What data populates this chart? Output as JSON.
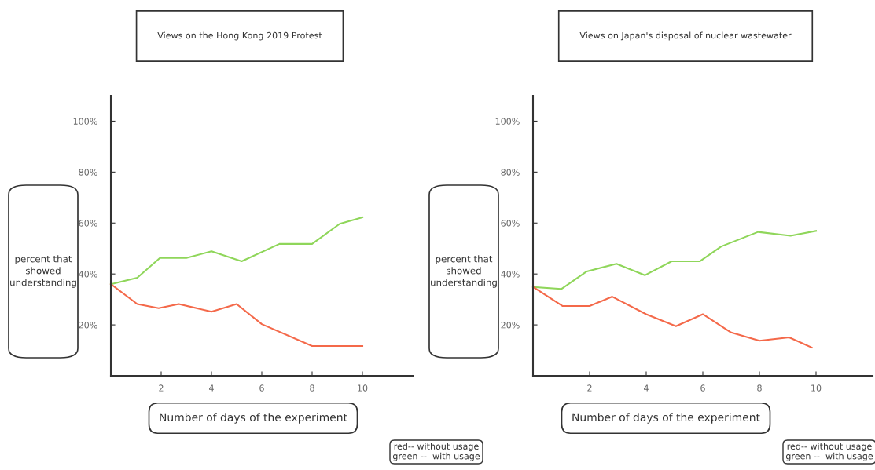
{
  "chart_data": [
    {
      "type": "line",
      "title": "Views on the Hong Kong 2019 Protest",
      "xlabel": "Number of days of the experiment",
      "ylabel": "percent that\nshowed\nunderstanding",
      "annotations": [
        "red-- without usage\ngreen --  with usage"
      ],
      "series": [
        {
          "color": "#8fd65a",
          "x": [
            0,
            1.05,
            1.95,
            3,
            4,
            5.2,
            6.7,
            8,
            9.1,
            10
          ],
          "values": [
            36,
            38.5,
            46.3,
            46.3,
            48.9,
            45,
            51.8,
            51.8,
            59.7,
            62.2
          ]
        },
        {
          "color": "#f4694a",
          "x": [
            0,
            1.05,
            1.9,
            2.7,
            4,
            5,
            6,
            8,
            10
          ],
          "values": [
            36,
            28.2,
            26.6,
            28.2,
            25.2,
            28.2,
            20.3,
            11.7,
            11.7
          ]
        }
      ],
      "xlim": [
        0,
        12
      ],
      "ylim": [
        0,
        110
      ],
      "xticks": [
        2,
        4,
        6,
        8,
        10
      ],
      "yticks": [
        {
          "value": 20,
          "label": "20%"
        },
        {
          "value": 40,
          "label": "40%"
        },
        {
          "value": 60,
          "label": "60%"
        },
        {
          "value": 80,
          "label": "80%"
        },
        {
          "value": 100,
          "label": "100%"
        }
      ],
      "grid": false,
      "legend": false,
      "marker": "none",
      "line_style": "solid"
    },
    {
      "type": "line",
      "title": "Views on Japan's disposal of nuclear wastewater",
      "xlabel": "Number of days of the experiment",
      "ylabel": "percent that\nshowed\nunderstanding",
      "annotations": [
        "red-- without usage\ngreen --  with usage"
      ],
      "series": [
        {
          "color": "#8fd65a",
          "x": [
            0,
            1,
            1.9,
            2.95,
            3.95,
            4.9,
            5.9,
            6.65,
            7.95,
            9.1,
            10
          ],
          "values": [
            34.9,
            34.1,
            41,
            44,
            39.5,
            45,
            45,
            50.8,
            56.5,
            55,
            56.9
          ]
        },
        {
          "color": "#f4694a",
          "x": [
            0,
            1.05,
            2,
            2.8,
            4,
            5.05,
            6,
            7,
            8,
            9.05,
            9.85
          ],
          "values": [
            34.9,
            27.4,
            27.4,
            31.1,
            24.2,
            19.5,
            24.2,
            17,
            13.8,
            15.1,
            11.1
          ]
        }
      ],
      "xlim": [
        0,
        12
      ],
      "ylim": [
        0,
        110
      ],
      "xticks": [
        2,
        4,
        6,
        8,
        10
      ],
      "yticks": [
        {
          "value": 20,
          "label": "20%"
        },
        {
          "value": 40,
          "label": "40%"
        },
        {
          "value": 60,
          "label": "60%"
        },
        {
          "value": 80,
          "label": "80%"
        },
        {
          "value": 100,
          "label": "100%"
        }
      ],
      "grid": false,
      "legend": false,
      "marker": "none",
      "line_style": "solid"
    }
  ]
}
